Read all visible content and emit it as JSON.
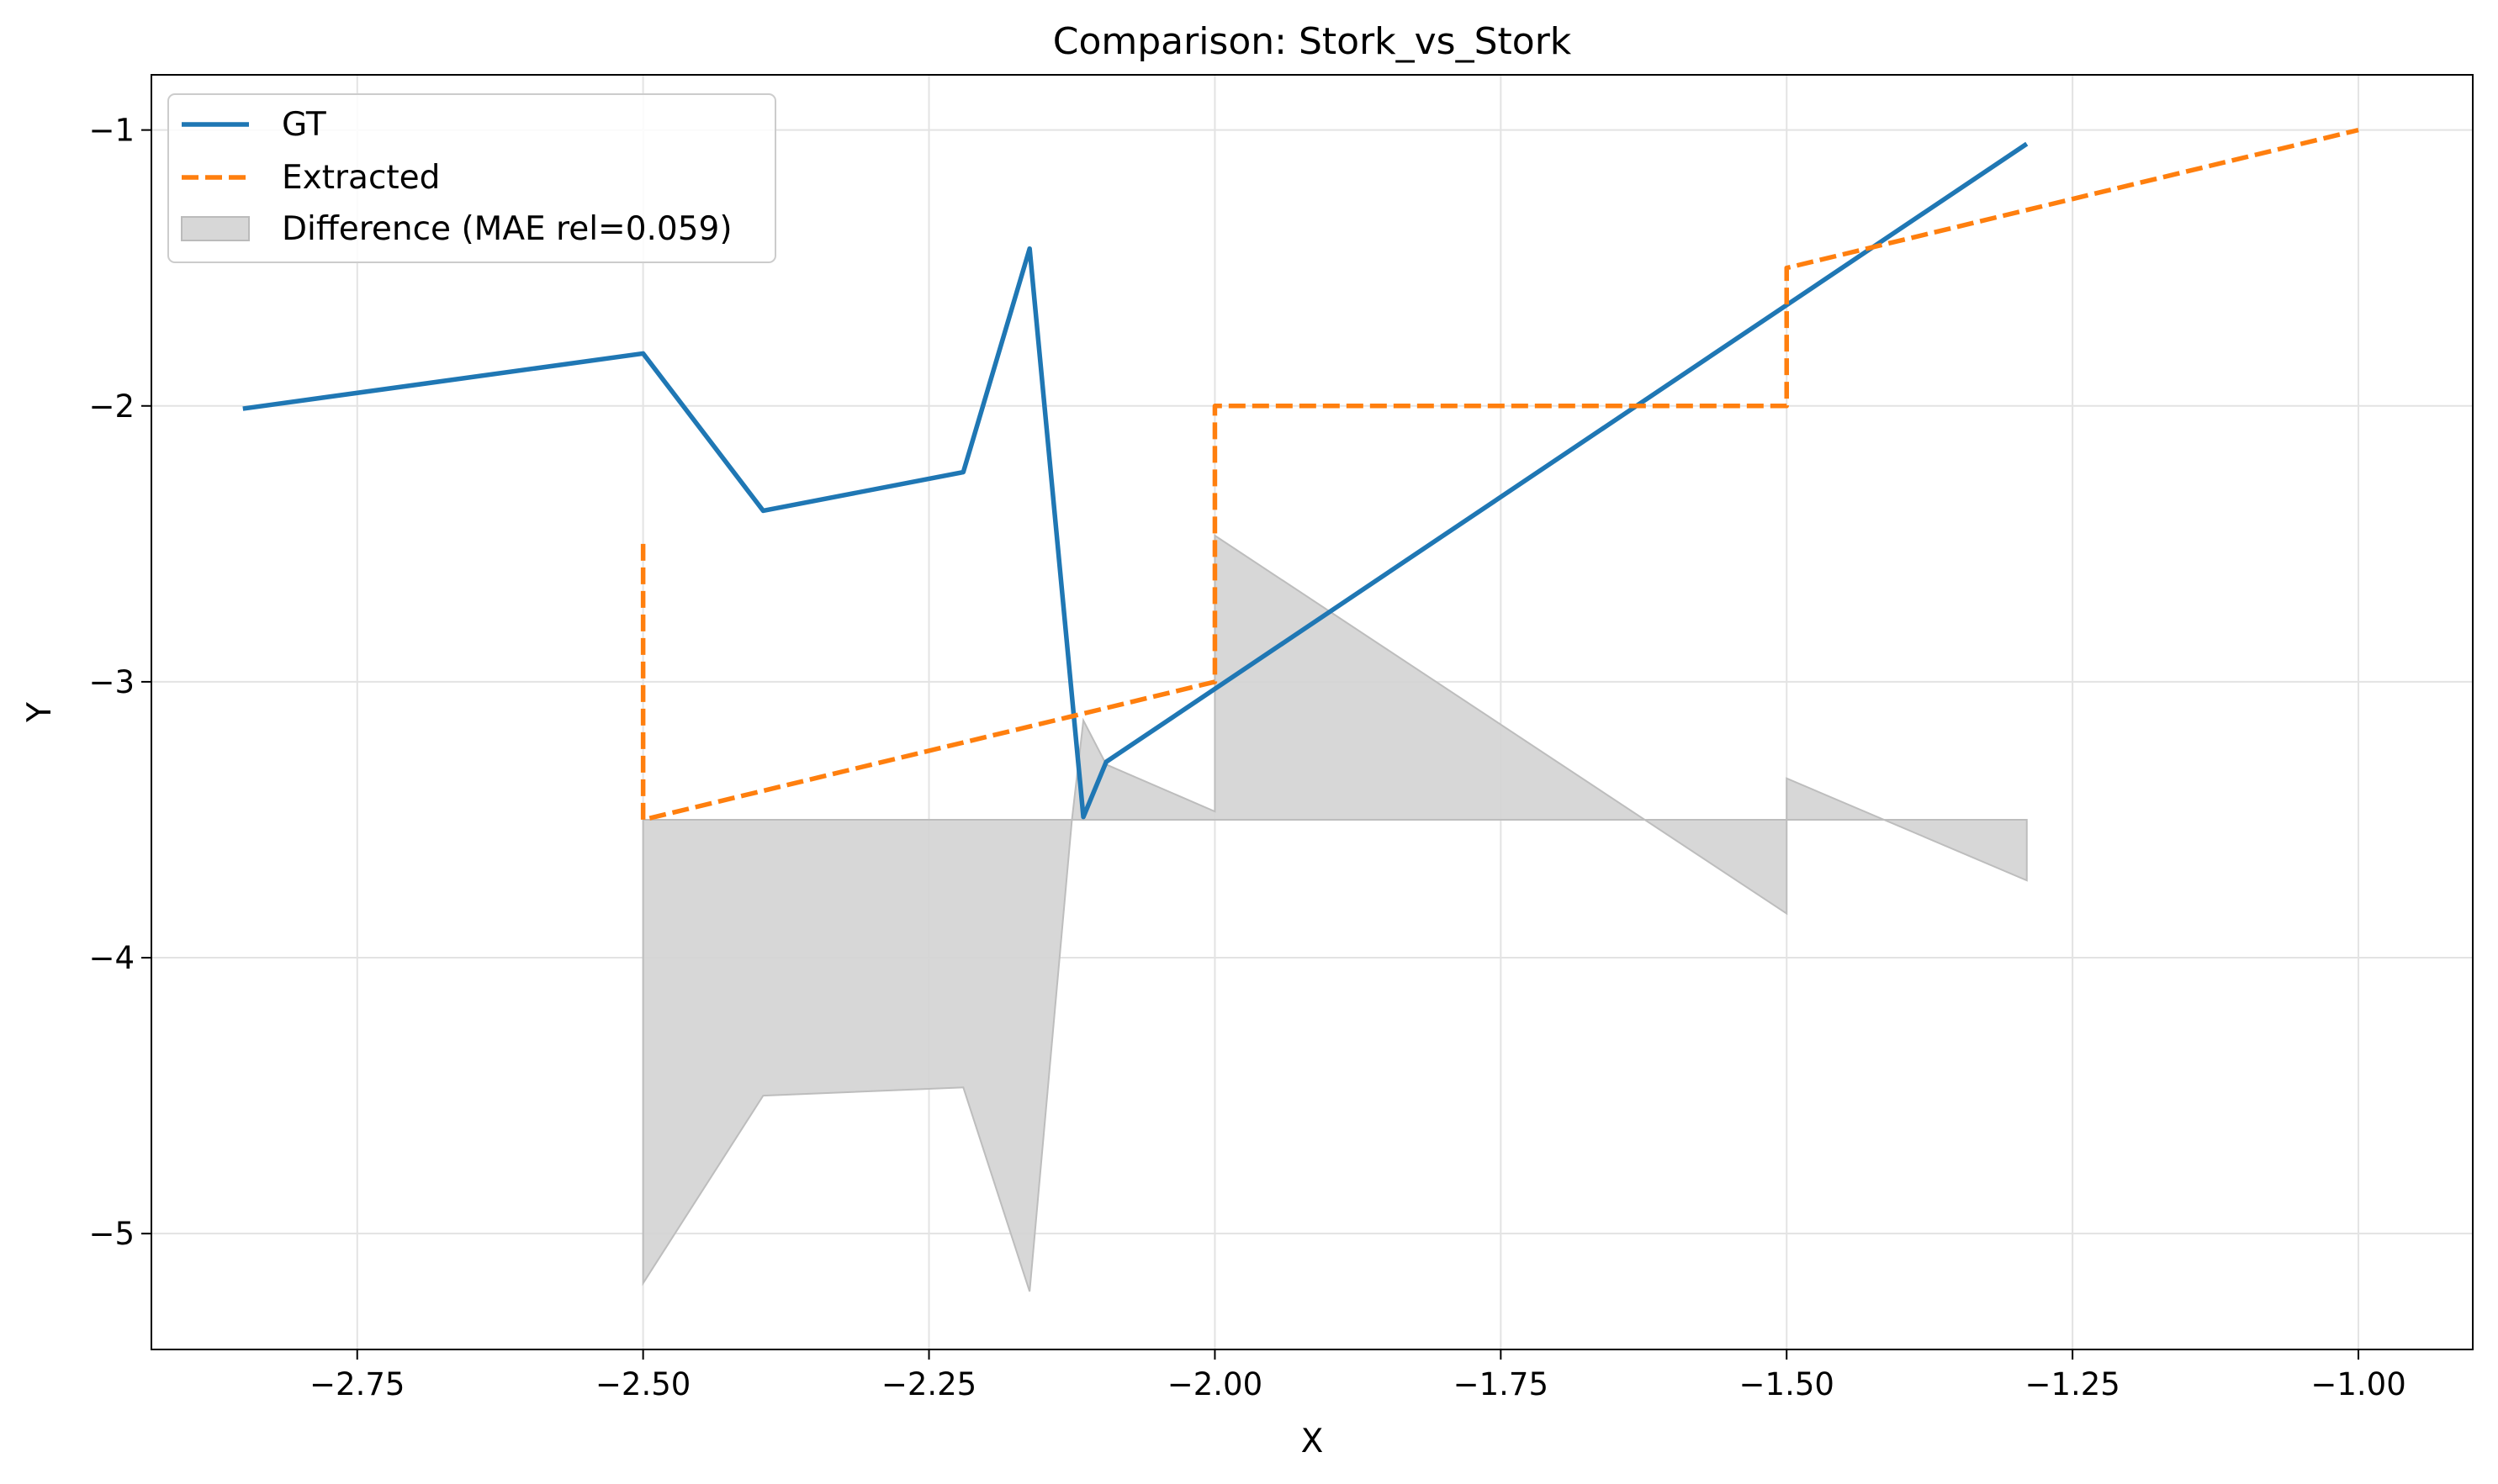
{
  "chart_data": {
    "type": "line",
    "title": "Comparison: Stork_vs_Stork",
    "xlabel": "X",
    "ylabel": "Y",
    "xlim": [
      -2.93,
      -0.9
    ],
    "ylim": [
      -5.42,
      -0.8
    ],
    "x_ticks": [
      -2.75,
      -2.5,
      -2.25,
      -2.0,
      -1.75,
      -1.5,
      -1.25,
      -1.0
    ],
    "x_tick_labels": [
      "−2.75",
      "−2.50",
      "−2.25",
      "−2.00",
      "−1.75",
      "−1.50",
      "−1.25",
      "−1.00"
    ],
    "y_ticks": [
      -1,
      -2,
      -3,
      -4,
      -5
    ],
    "y_tick_labels": [
      "−1",
      "−2",
      "−3",
      "−4",
      "−5"
    ],
    "grid": true,
    "legend_position": "top-left",
    "series": [
      {
        "name": "GT",
        "style": "solid",
        "color": "#1f77b4",
        "x": [
          -2.85,
          -2.5,
          -2.395,
          -2.22,
          -2.162,
          -2.115,
          -2.095,
          -1.29
        ],
        "y": [
          -2.01,
          -1.81,
          -2.38,
          -2.24,
          -1.43,
          -3.49,
          -3.29,
          -1.05
        ]
      },
      {
        "name": "Extracted",
        "style": "dashed",
        "color": "#ff7f0e",
        "x": [
          -2.5,
          -2.5,
          -2.0,
          -2.0,
          -1.5,
          -1.5,
          -1.0
        ],
        "y": [
          -2.5,
          -3.5,
          -3.0,
          -2.0,
          -2.0,
          -1.5,
          -1.0
        ]
      }
    ],
    "difference": {
      "name": "Difference (MAE rel=0.059)",
      "color": "#d3d3d3",
      "baseline": -3.5,
      "x": [
        -2.5,
        -2.5,
        -2.395,
        -2.22,
        -2.162,
        -2.125,
        -2.115,
        -2.095,
        -2.0,
        -2.0,
        -1.5,
        -1.5,
        -1.29
      ],
      "y": [
        -3.5,
        -5.18,
        -4.5,
        -4.47,
        -5.21,
        -3.5,
        -3.14,
        -3.3,
        -3.47,
        -2.47,
        -3.84,
        -3.35,
        -3.72
      ]
    }
  }
}
